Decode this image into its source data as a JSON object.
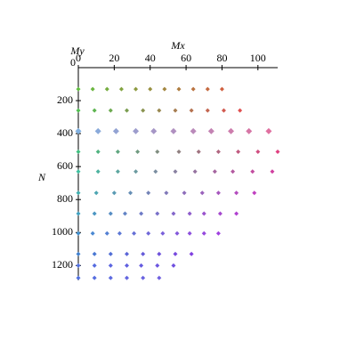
{
  "chart_data": {
    "type": "scatter",
    "x_label": "Mx",
    "y_label": "N",
    "z_label": "My",
    "z_tick": "0",
    "xlim": [
      0,
      111
    ],
    "xticks": [
      0,
      20,
      40,
      60,
      80,
      100
    ],
    "ylim": [
      0,
      1290
    ],
    "yticks": [
      200,
      400,
      600,
      800,
      1000,
      1200
    ],
    "y_inverted": true,
    "series": [
      {
        "x": [
          0,
          8,
          16,
          24,
          32,
          40,
          48,
          56,
          64,
          72,
          80
        ],
        "values": [
          130,
          130,
          130,
          130,
          130,
          130,
          130,
          130,
          130,
          130,
          130
        ],
        "colors": [
          "#60c040",
          "#d06040"
        ],
        "marker_size": 2.5
      },
      {
        "x": [
          0,
          9,
          18,
          27,
          36,
          45,
          54,
          63,
          72,
          81,
          90
        ],
        "values": [
          260,
          260,
          260,
          260,
          260,
          260,
          260,
          260,
          260,
          260,
          260
        ],
        "colors": [
          "#50c050",
          "#e05050"
        ],
        "marker_size": 2.5
      },
      {
        "x": [
          0,
          11,
          21,
          32,
          42,
          53,
          64,
          74,
          85,
          95,
          106
        ],
        "values": [
          385,
          385,
          385,
          385,
          385,
          385,
          385,
          385,
          385,
          385,
          385
        ],
        "colors": [
          "#80b0e0",
          "#e070a0"
        ],
        "marker_size": 3.5
      },
      {
        "x": [
          0,
          11,
          22,
          33,
          44,
          56,
          67,
          78,
          89,
          100,
          111
        ],
        "values": [
          510,
          510,
          510,
          510,
          510,
          510,
          510,
          510,
          510,
          510,
          510
        ],
        "colors": [
          "#40c080",
          "#e04080"
        ],
        "marker_size": 2.5
      },
      {
        "x": [
          0,
          11,
          22,
          32,
          43,
          54,
          65,
          76,
          86,
          97,
          108
        ],
        "values": [
          630,
          630,
          630,
          630,
          630,
          630,
          630,
          630,
          630,
          630,
          630
        ],
        "colors": [
          "#40c0a0",
          "#d040a0"
        ],
        "marker_size": 2.5
      },
      {
        "x": [
          0,
          10,
          20,
          29,
          39,
          49,
          59,
          69,
          78,
          88,
          98
        ],
        "values": [
          760,
          760,
          760,
          760,
          760,
          760,
          760,
          760,
          760,
          760,
          760
        ],
        "colors": [
          "#40b0b0",
          "#c040c0"
        ],
        "marker_size": 2.5
      },
      {
        "x": [
          0,
          9,
          18,
          26,
          35,
          44,
          53,
          62,
          70,
          79,
          88
        ],
        "values": [
          885,
          885,
          885,
          885,
          885,
          885,
          885,
          885,
          885,
          885,
          885
        ],
        "colors": [
          "#40a0c0",
          "#b040d0"
        ],
        "marker_size": 2.5
      },
      {
        "x": [
          0,
          8,
          16,
          23,
          31,
          39,
          47,
          55,
          62,
          70,
          78
        ],
        "values": [
          1005,
          1005,
          1005,
          1005,
          1005,
          1005,
          1005,
          1005,
          1005,
          1005,
          1005
        ],
        "colors": [
          "#4090d0",
          "#a040e0"
        ],
        "marker_size": 2.5
      },
      {
        "x": [
          0,
          9,
          18,
          27,
          36,
          45,
          54,
          63
        ],
        "values": [
          1130,
          1130,
          1130,
          1130,
          1130,
          1130,
          1130,
          1130
        ],
        "colors": [
          "#4080d0",
          "#8040e0"
        ],
        "marker_size": 2.5
      },
      {
        "x": [
          0,
          9,
          18,
          27,
          35,
          44,
          53
        ],
        "values": [
          1200,
          1200,
          1200,
          1200,
          1200,
          1200,
          1200
        ],
        "colors": [
          "#5070e0",
          "#7050e0"
        ],
        "marker_size": 2.5
      },
      {
        "x": [
          0,
          9,
          18,
          27,
          36,
          45
        ],
        "values": [
          1275,
          1275,
          1275,
          1275,
          1275,
          1275
        ],
        "colors": [
          "#5070e0",
          "#7060e0"
        ],
        "marker_size": 2.5
      }
    ]
  }
}
